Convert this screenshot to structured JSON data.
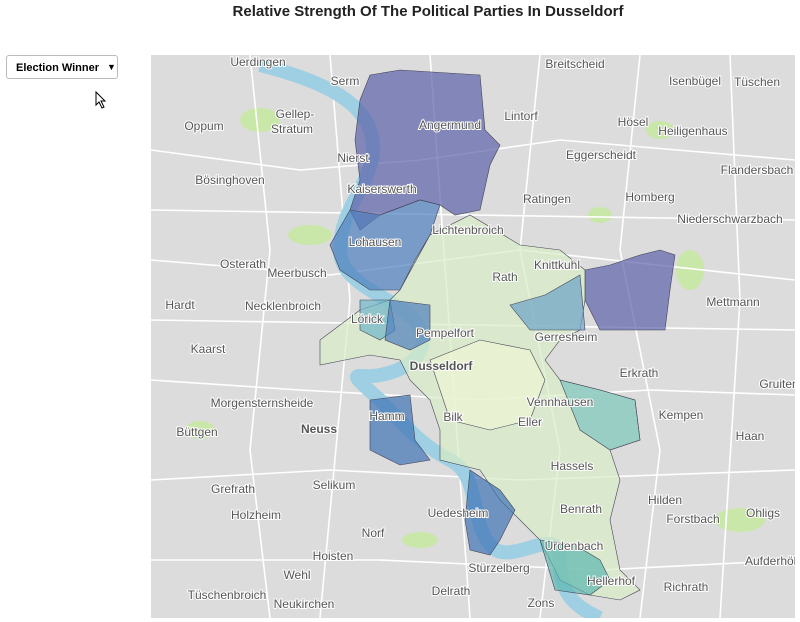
{
  "title": "Relative Strength Of The Political Parties In Dusseldorf",
  "dropdown": {
    "label": "Election Winner",
    "arrow": "▼"
  },
  "places": [
    "Uerdingen",
    "Breitscheid",
    "Serm",
    "Isenbügel",
    "Tüschen",
    "Gellep-",
    "Stratum",
    "Oppum",
    "Angermund",
    "Lintorf",
    "Hösel",
    "Heiligenhaus",
    "Nierst",
    "Eggerscheidt",
    "Flandersbach",
    "Bösinghoven",
    "Kaiserswerth",
    "Ratingen",
    "Homberg",
    "Niederschwarzbach",
    "Lohausen",
    "Lichtenbroich",
    "Osterath",
    "Meerbusch",
    "Rath",
    "Knittkuhl",
    "Mettmann",
    "Hardt",
    "Necklenbroich",
    "Lörick",
    "Pempelfort",
    "Gerresheim",
    "Kaarst",
    "Dusseldorf",
    "Erkrath",
    "Gruiten",
    "Morgensternsheide",
    "Vennhausen",
    "Kempen",
    "Büttgen",
    "Neuss",
    "Hamm",
    "Bilk",
    "Eller",
    "Haan",
    "Hassels",
    "Grefrath",
    "Selikum",
    "Hilden",
    "Holzheim",
    "Benrath",
    "Forstbach",
    "Ohligs",
    "Uedesheim",
    "Norf",
    "Urdenbach",
    "Hoisten",
    "Aufderhöhe",
    "Wehl",
    "Hellerhof",
    "Stürzelberg",
    "Richrath",
    "Tüschenbroich",
    "Neukirchen",
    "Delrath",
    "Zons"
  ]
}
